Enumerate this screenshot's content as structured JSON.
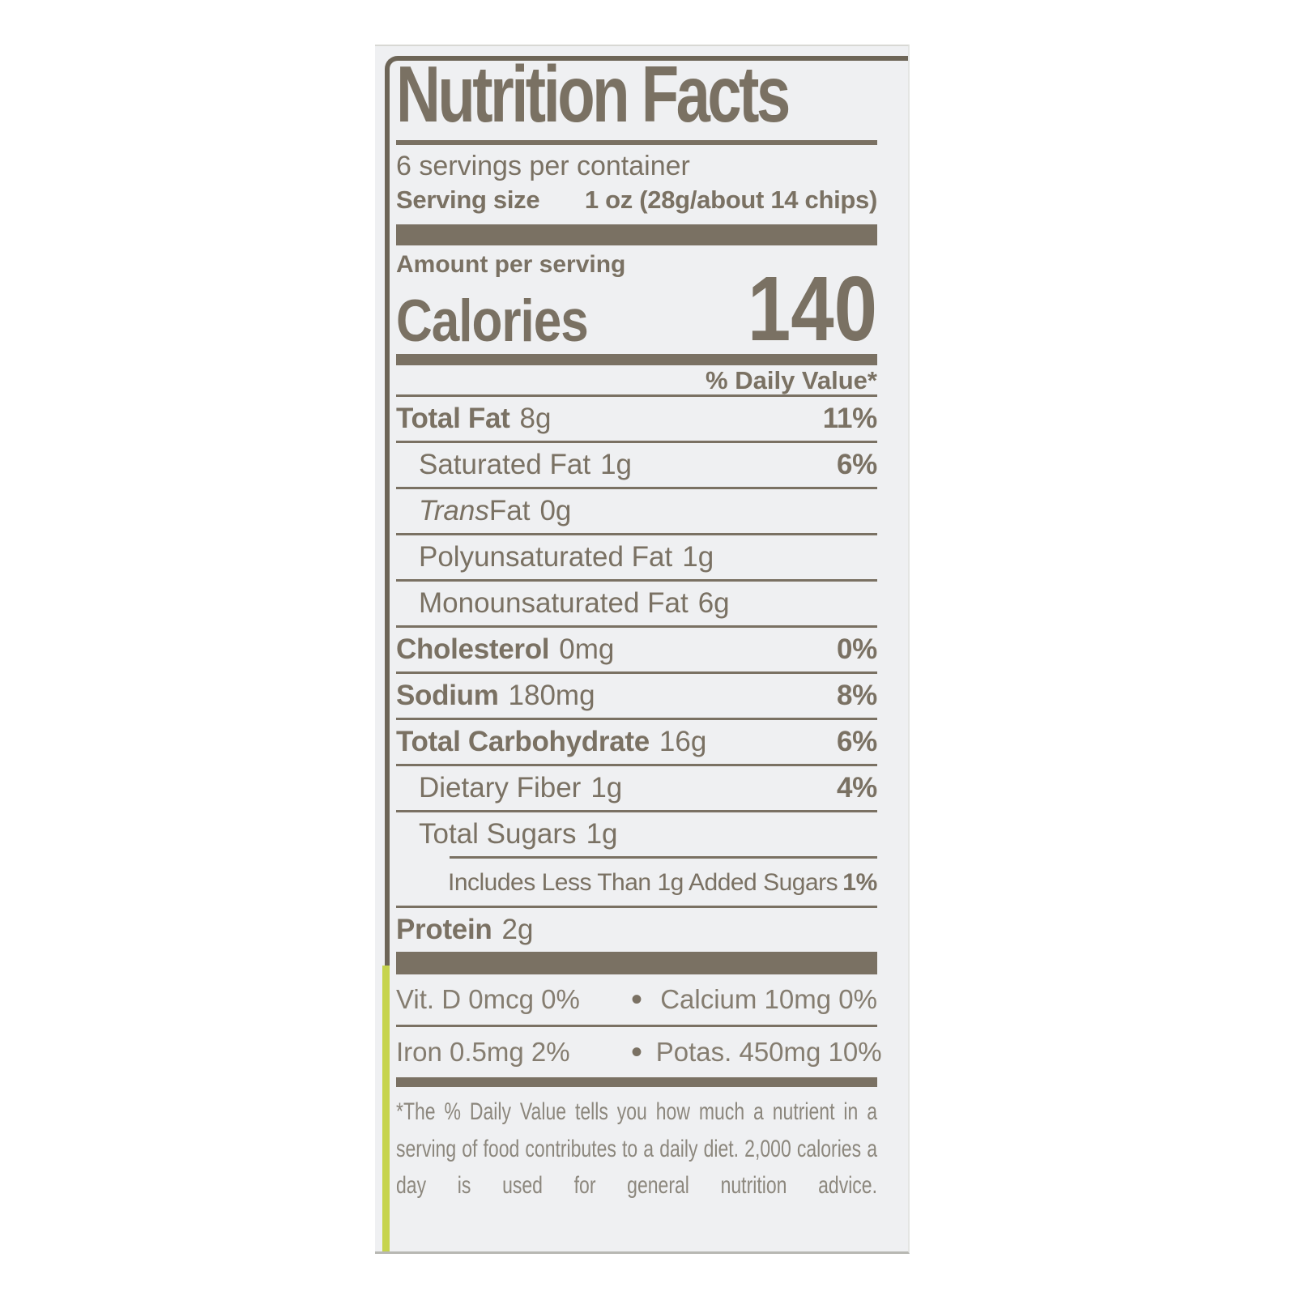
{
  "colors": {
    "ink": "#7a7163",
    "panel_background": "#eff0f2",
    "package_edge_accent": "#c6d44d",
    "page_background": "#ffffff"
  },
  "label": {
    "title": "Nutrition Facts",
    "servings_per_container": "6 servings per container",
    "serving_size": {
      "label": "Serving size",
      "value": "1 oz (28g/about 14 chips)"
    },
    "amount_per_serving": "Amount per serving",
    "calories": {
      "label": "Calories",
      "value": "140"
    },
    "daily_value_header": "% Daily Value*",
    "rows": [
      {
        "name": "Total Fat",
        "amount": "8g",
        "dv": "11%"
      },
      {
        "name": "Saturated Fat",
        "amount": "1g",
        "dv": "6%"
      },
      {
        "name_italic": "Trans",
        "name": " Fat",
        "amount": "0g",
        "dv": ""
      },
      {
        "name": "Polyunsaturated Fat",
        "amount": "1g",
        "dv": ""
      },
      {
        "name": "Monounsaturated Fat",
        "amount": "6g",
        "dv": ""
      },
      {
        "name": "Cholesterol",
        "amount": "0mg",
        "dv": "0%"
      },
      {
        "name": "Sodium",
        "amount": "180mg",
        "dv": "8%"
      },
      {
        "name": "Total Carbohydrate",
        "amount": "16g",
        "dv": "6%"
      },
      {
        "name": "Dietary Fiber",
        "amount": "1g",
        "dv": "4%"
      },
      {
        "name": "Total Sugars",
        "amount": "1g",
        "dv": ""
      },
      {
        "name": "Includes Less Than 1g Added Sugars",
        "amount": "",
        "dv": "1%"
      },
      {
        "name": "Protein",
        "amount": "2g",
        "dv": ""
      }
    ],
    "micronutrients": [
      {
        "left": "Vit. D 0mcg 0%",
        "separator": "•",
        "right": "Calcium 10mg 0%"
      },
      {
        "left": "Iron 0.5mg 2%",
        "separator": "•",
        "right": "Potas. 450mg 10%"
      }
    ],
    "footnote": "*The % Daily Value tells you how much a nutrient in a serving of food contributes to a daily diet. 2,000 calories a day is used for general nutrition advice."
  }
}
